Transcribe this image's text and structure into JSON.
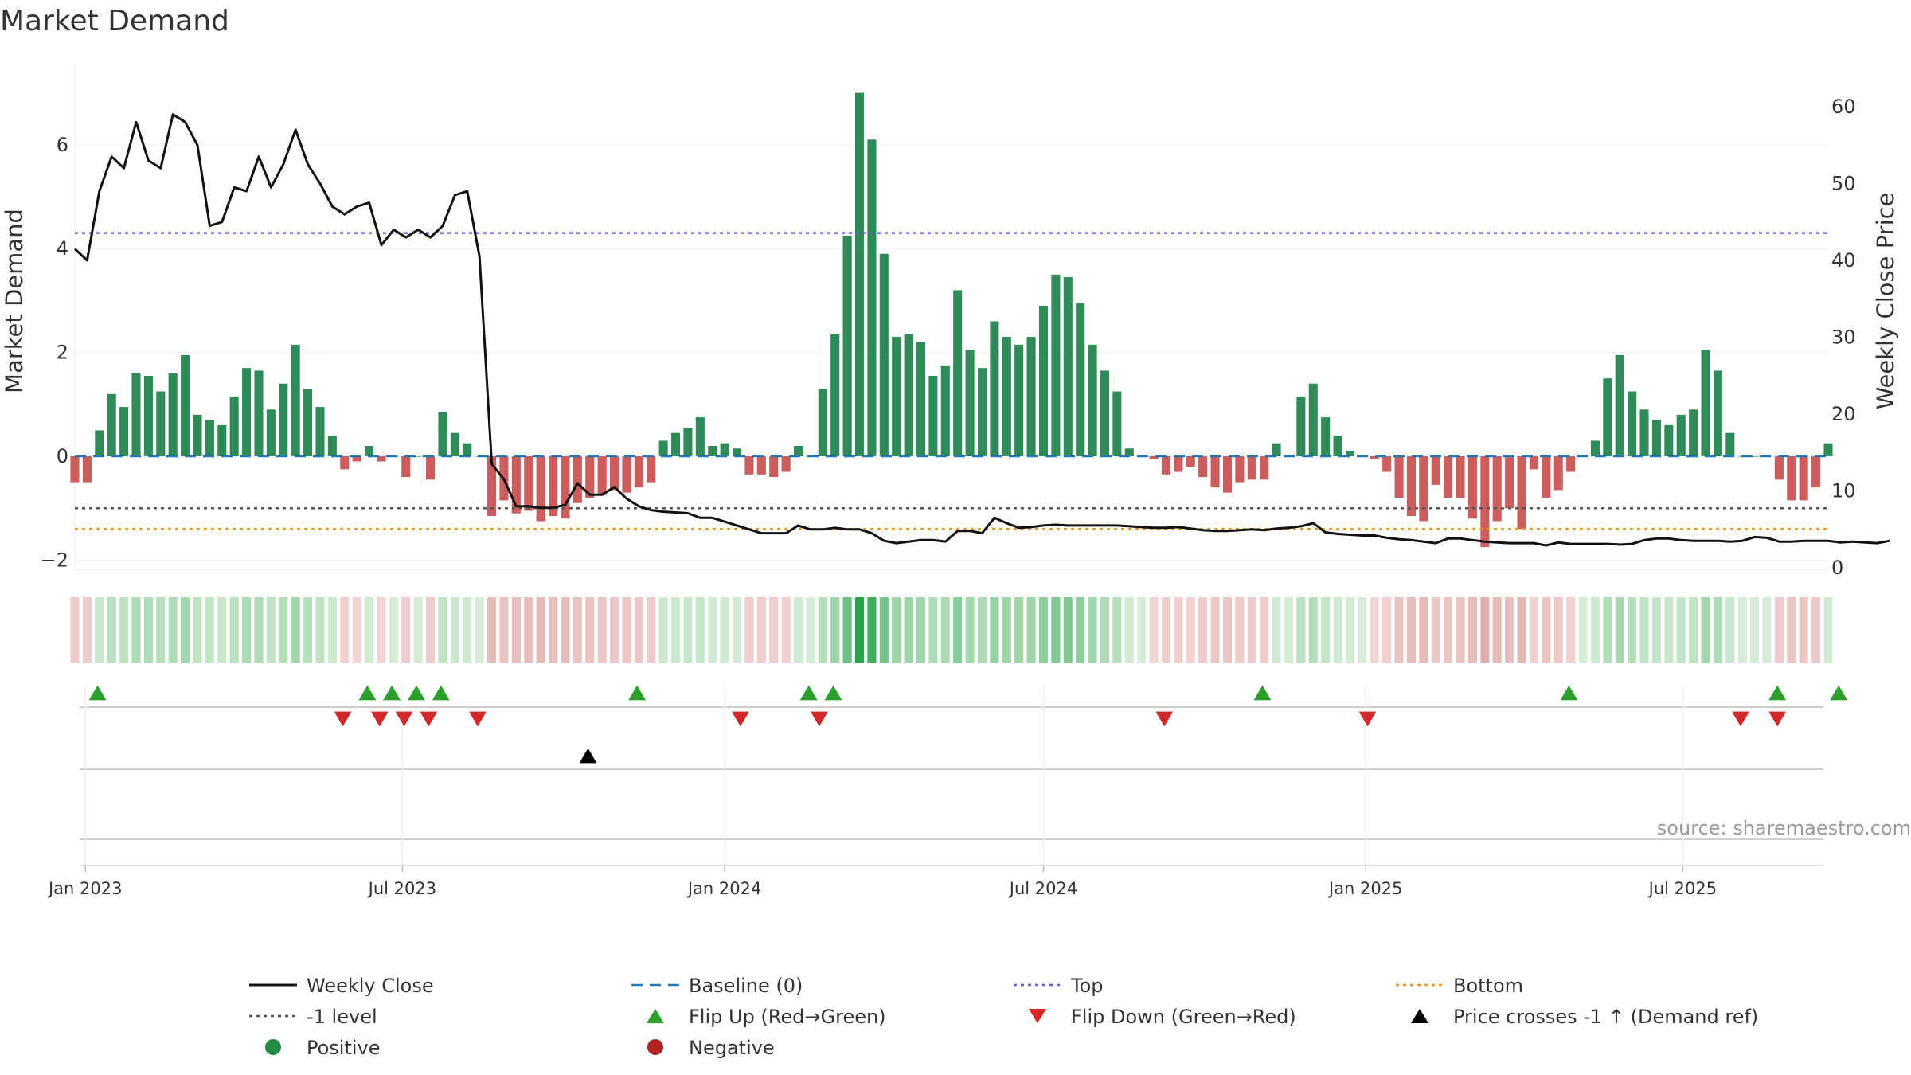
{
  "chart_data": {
    "type": "bar",
    "title": "Market Demand",
    "ylabel": "Market Demand",
    "y2label": "Weekly Close Price",
    "ylim": [
      -2.2,
      7.5
    ],
    "y2lim": [
      0,
      62
    ],
    "yticks": [
      "−2",
      "0",
      "2",
      "4",
      "6"
    ],
    "y2ticks": [
      "0",
      "10",
      "20",
      "30",
      "40",
      "50",
      "60"
    ],
    "x_range": [
      "2022-12-26",
      "2025-09-22"
    ],
    "x_ticks": [
      {
        "label": "Jan 2023",
        "date": "2023-01-01"
      },
      {
        "label": "Jul 2023",
        "date": "2023-07-01"
      },
      {
        "label": "Jan 2024",
        "date": "2024-01-01"
      },
      {
        "label": "Jul 2024",
        "date": "2024-07-01"
      },
      {
        "label": "Jan 2025",
        "date": "2025-01-01"
      },
      {
        "label": "Jul 2025",
        "date": "2025-07-01"
      }
    ],
    "start_week": "2022-12-26",
    "reference_lines": {
      "baseline": 0,
      "level_minus1": -1,
      "top": 4.3,
      "bottom": -1.4
    },
    "series": [
      {
        "name": "Market Demand",
        "axis": "left",
        "values": [
          -0.5,
          -0.5,
          0.5,
          1.2,
          0.95,
          1.6,
          1.55,
          1.25,
          1.6,
          1.95,
          0.8,
          0.7,
          0.6,
          1.15,
          1.7,
          1.65,
          0.9,
          1.4,
          2.15,
          1.3,
          0.95,
          0.4,
          -0.25,
          -0.1,
          0.2,
          -0.1,
          0,
          -0.4,
          0,
          -0.45,
          0.85,
          0.45,
          0.25,
          0,
          -1.15,
          -0.85,
          -1.1,
          -1.05,
          -1.25,
          -1.15,
          -1.2,
          -0.9,
          -0.8,
          -0.75,
          -0.65,
          -0.7,
          -0.6,
          -0.5,
          0.3,
          0.45,
          0.55,
          0.75,
          0.2,
          0.25,
          0.15,
          -0.35,
          -0.35,
          -0.4,
          -0.3,
          0.2,
          0,
          1.3,
          2.35,
          4.25,
          7.0,
          6.1,
          3.9,
          2.3,
          2.35,
          2.2,
          1.55,
          1.75,
          3.2,
          2.05,
          1.7,
          2.6,
          2.3,
          2.15,
          2.3,
          2.9,
          3.5,
          3.45,
          2.95,
          2.15,
          1.65,
          1.25,
          0.15,
          0,
          -0.05,
          -0.35,
          -0.3,
          -0.2,
          -0.4,
          -0.6,
          -0.7,
          -0.5,
          -0.45,
          -0.45,
          0.25,
          0,
          1.15,
          1.4,
          0.75,
          0.4,
          0.1,
          0,
          -0.05,
          -0.3,
          -0.8,
          -1.15,
          -1.25,
          -0.55,
          -0.8,
          -0.8,
          -1.2,
          -1.75,
          -1.25,
          -1.0,
          -1.4,
          -0.25,
          -0.8,
          -0.65,
          -0.3,
          0,
          0.3,
          1.5,
          1.95,
          1.25,
          0.9,
          0.7,
          0.6,
          0.8,
          0.9,
          2.05,
          1.65,
          0.45,
          0,
          0,
          0,
          -0.45,
          -0.85,
          -0.85,
          -0.6,
          0.25
        ]
      },
      {
        "name": "Weekly Close",
        "axis": "right",
        "values": [
          41.5,
          40,
          49,
          53.5,
          52,
          58,
          53,
          52,
          59,
          58,
          55,
          44.5,
          45,
          49.5,
          49,
          53.5,
          49.5,
          52.5,
          57,
          52.5,
          50,
          47,
          46,
          47,
          47.5,
          42,
          44,
          43,
          44,
          43,
          44.5,
          48.5,
          49,
          40.5,
          13.5,
          11.5,
          8,
          8,
          7.8,
          7.8,
          8.2,
          11,
          9.5,
          9.5,
          10.5,
          9,
          8,
          7.5,
          7.3,
          7.2,
          7.1,
          6.5,
          6.5,
          6,
          5.5,
          5,
          4.5,
          4.5,
          4.5,
          5.5,
          5,
          5,
          5.2,
          5,
          5,
          4.5,
          3.5,
          3.2,
          3.4,
          3.6,
          3.6,
          3.4,
          4.8,
          4.8,
          4.5,
          6.5,
          5.8,
          5.2,
          5.3,
          5.5,
          5.6,
          5.5,
          5.5,
          5.5,
          5.5,
          5.5,
          5.4,
          5.3,
          5.2,
          5.2,
          5.3,
          5.1,
          4.9,
          4.8,
          4.8,
          4.9,
          5,
          4.9,
          5.1,
          5.2,
          5.4,
          5.8,
          4.6,
          4.4,
          4.3,
          4.2,
          4.2,
          3.9,
          3.7,
          3.6,
          3.4,
          3.2,
          3.8,
          3.8,
          3.6,
          3.4,
          3.3,
          3.2,
          3.2,
          3.2,
          2.9,
          3.3,
          3.1,
          3.1,
          3.1,
          3.1,
          3,
          3.1,
          3.6,
          3.8,
          3.8,
          3.6,
          3.5,
          3.5,
          3.5,
          3.4,
          3.5,
          4,
          3.9,
          3.4,
          3.4,
          3.5,
          3.5,
          3.5,
          3.3,
          3.4,
          3.3,
          3.2,
          3.5
        ]
      }
    ],
    "flip_up_dates": [
      "2023-01-08",
      "2023-06-11",
      "2023-06-25",
      "2023-07-09",
      "2023-07-23",
      "2023-11-12",
      "2024-02-18",
      "2024-03-03",
      "2024-11-03",
      "2025-04-27",
      "2025-08-24",
      "2025-09-28"
    ],
    "flip_down_dates": [
      "2023-05-28",
      "2023-06-18",
      "2023-07-02",
      "2023-07-16",
      "2023-08-13",
      "2024-01-10",
      "2024-02-24",
      "2024-09-08",
      "2025-01-02",
      "2025-08-03",
      "2025-08-24"
    ],
    "price_cross_dates": [
      "2023-10-15"
    ],
    "legend": [
      {
        "label": "Weekly Close",
        "marker": "line",
        "color": "#111111"
      },
      {
        "label": "Baseline (0)",
        "marker": "dash",
        "color": "#1f77b4"
      },
      {
        "label": "Top",
        "marker": "dot",
        "color": "#6a5acd"
      },
      {
        "label": "Bottom",
        "marker": "dot",
        "color": "#e69a1d"
      },
      {
        "label": "-1 level",
        "marker": "dot",
        "color": "#555555"
      },
      {
        "label": "Flip Up (Red→Green)",
        "marker": "tri-up",
        "color": "#2ca02c"
      },
      {
        "label": "Flip Down (Green→Red)",
        "marker": "tri-down",
        "color": "#d62728"
      },
      {
        "label": "Price crosses -1 ↑ (Demand ref)",
        "marker": "tri-up",
        "color": "#000000"
      },
      {
        "label": "Positive",
        "marker": "circle",
        "color": "#238b45"
      },
      {
        "label": "Negative",
        "marker": "circle",
        "color": "#b22222"
      }
    ],
    "colors": {
      "positive": "#2e8b57",
      "negative": "#cd5c5c",
      "price": "#111111"
    }
  },
  "source": "source: sharemaestro.com"
}
